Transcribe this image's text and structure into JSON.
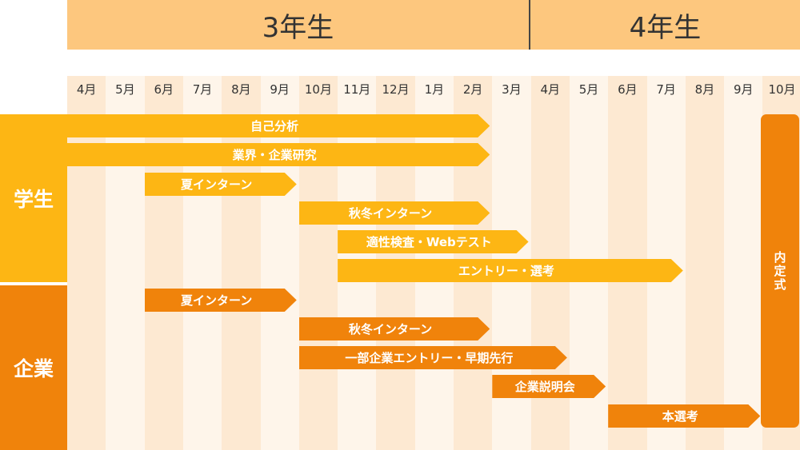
{
  "years": [
    {
      "label": "3年生"
    },
    {
      "label": "4年生"
    }
  ],
  "months": [
    "4月",
    "5月",
    "6月",
    "7月",
    "8月",
    "9月",
    "10月",
    "11月",
    "12月",
    "1月",
    "2月",
    "3月",
    "4月",
    "5月",
    "6月",
    "7月",
    "8月",
    "9月",
    "10月"
  ],
  "rows": {
    "student": {
      "label": "学生"
    },
    "company": {
      "label": "企業"
    }
  },
  "bars": [
    {
      "label": "自己分析",
      "group": "student",
      "start": 0,
      "end": 10
    },
    {
      "label": "業界・企業研究",
      "group": "student",
      "start": 0,
      "end": 10
    },
    {
      "label": "夏インターン",
      "group": "student",
      "start": 2,
      "end": 5
    },
    {
      "label": "秋冬インターン",
      "group": "student",
      "start": 6,
      "end": 10
    },
    {
      "label": "適性検査・Webテスト",
      "group": "student",
      "start": 7,
      "end": 11
    },
    {
      "label": "エントリー・選考",
      "group": "student",
      "start": 7,
      "end": 15
    },
    {
      "label": "夏インターン",
      "group": "company",
      "start": 2,
      "end": 5
    },
    {
      "label": "秋冬インターン",
      "group": "company",
      "start": 6,
      "end": 10
    },
    {
      "label": "一部企業エントリー・早期先行",
      "group": "company",
      "start": 6,
      "end": 12
    },
    {
      "label": "企業説明会",
      "group": "company",
      "start": 11,
      "end": 13
    },
    {
      "label": "本選考",
      "group": "company",
      "start": 14,
      "end": 17
    }
  ],
  "ceremony": {
    "label": "内定式",
    "month_index": 18
  },
  "colors": {
    "student": "#fdb614",
    "company": "#f0830b",
    "year_band": "#fdc77e",
    "strip_a": "#fde9d2",
    "strip_b": "#fef5ea"
  }
}
